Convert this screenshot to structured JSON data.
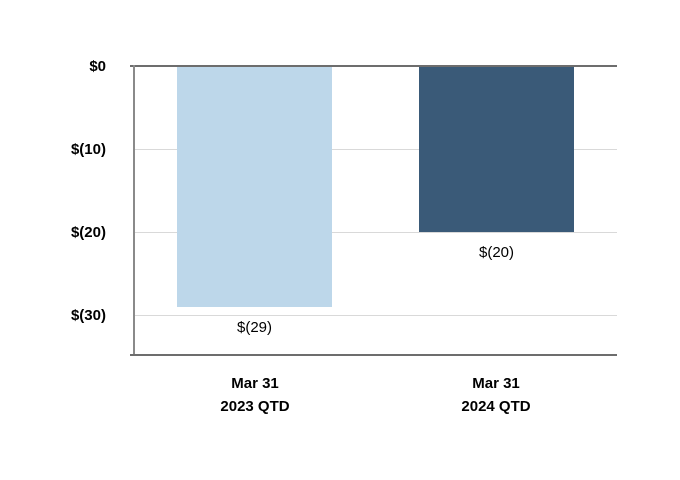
{
  "chart_data": {
    "type": "bar",
    "title": "",
    "categories": [
      "Mar 31 2023 QTD",
      "Mar 31 2024 QTD"
    ],
    "category_lines": [
      [
        "Mar 31",
        "2023 QTD"
      ],
      [
        "Mar 31",
        "2024 QTD"
      ]
    ],
    "values": [
      -29,
      -20
    ],
    "data_labels": [
      "$(29)",
      "$(20)"
    ],
    "bar_colors": [
      "#bdd7ea",
      "#3a5a78"
    ],
    "y_ticks": [
      {
        "label": "$0",
        "value": 0
      },
      {
        "label": "$(10)",
        "value": -10
      },
      {
        "label": "$(20)",
        "value": -20
      },
      {
        "label": "$(30)",
        "value": -30
      }
    ],
    "ylim": [
      -34.9,
      0
    ],
    "grid": true,
    "legend": false,
    "axis_color": "#6d6d6d",
    "grid_color": "#d9d9d9",
    "text_color": "#000000"
  }
}
